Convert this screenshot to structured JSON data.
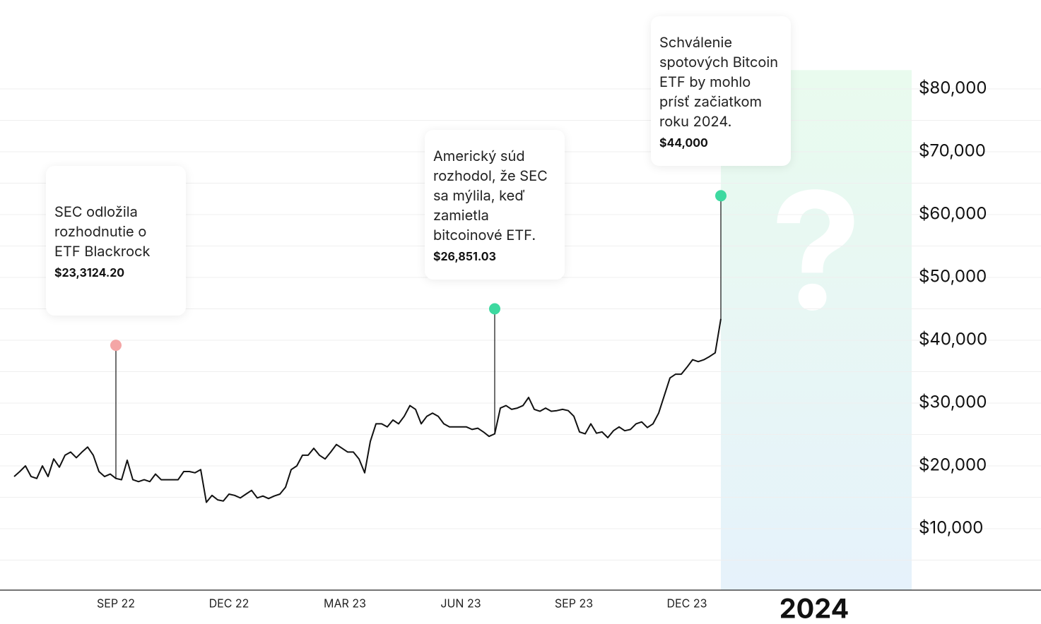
{
  "chart_data": {
    "type": "line",
    "series": [
      {
        "color": "#111111",
        "values": [
          18300,
          19100,
          20000,
          18300,
          18000,
          20000,
          18300,
          21100,
          19800,
          21700,
          22200,
          21300,
          22200,
          23000,
          21700,
          19100,
          18300,
          18700,
          18000,
          17800,
          20900,
          17800,
          17500,
          17800,
          17500,
          18700,
          17800,
          17800,
          17800,
          17800,
          19100,
          19100,
          18900,
          19400,
          14200,
          15300,
          14600,
          14400,
          15500,
          15300,
          14900,
          15500,
          16100,
          14900,
          15200,
          14800,
          15200,
          15500,
          16600,
          19400,
          20000,
          21700,
          21700,
          22800,
          21700,
          21100,
          22200,
          23400,
          22800,
          22200,
          22200,
          21100,
          18900,
          23900,
          26700,
          26700,
          26200,
          27300,
          26700,
          27900,
          29600,
          29000,
          26700,
          27900,
          28400,
          27900,
          26700,
          26200,
          26200,
          26200,
          26200,
          25800,
          26000,
          25400,
          24700,
          25100,
          29200,
          29600,
          29000,
          29200,
          29600,
          30900,
          29000,
          28700,
          29200,
          28700,
          28800,
          29000,
          28800,
          27900,
          25400,
          25100,
          26700,
          25200,
          25400,
          24500,
          25600,
          26200,
          25600,
          25800,
          26700,
          27000,
          26100,
          26700,
          28400,
          31200,
          34000,
          34600,
          34600,
          35700,
          36900,
          36600,
          36900,
          37400,
          38000,
          43400
        ]
      }
    ],
    "xlim": [
      -2.5,
      158.75
    ],
    "xticks": [
      {
        "value": 18,
        "label": "SEP 22"
      },
      {
        "value": 38,
        "label": "DEC 22"
      },
      {
        "value": 58.5,
        "label": "MAR 23"
      },
      {
        "value": 79,
        "label": "JUN 23"
      },
      {
        "value": 99,
        "label": "SEP 23"
      },
      {
        "value": 119,
        "label": "DEC 23"
      },
      {
        "value": 141.5,
        "label": "2024"
      }
    ],
    "ylim": [
      0,
      83000
    ],
    "yticks": [
      {
        "value": 10000,
        "label": "$10,000"
      },
      {
        "value": 20000,
        "label": "$20,000"
      },
      {
        "value": 30000,
        "label": "$30,000"
      },
      {
        "value": 40000,
        "label": "$40,000"
      },
      {
        "value": 50000,
        "label": "$50,000"
      },
      {
        "value": 60000,
        "label": "$60,000"
      },
      {
        "value": 70000,
        "label": "$70,000"
      },
      {
        "value": 80000,
        "label": "$80,000"
      }
    ],
    "grid_lines": [
      5000,
      10000,
      15000,
      20000,
      25000,
      30000,
      35000,
      40000,
      45000,
      50000,
      55000,
      60000,
      65000,
      70000,
      75000,
      80000
    ],
    "highlight_range": [
      125,
      158.75
    ],
    "highlight_text": "?",
    "annotations": [
      {
        "x": 18,
        "y": 39200,
        "color": "#f4a6a6",
        "text": [
          "SEC odložila",
          "rozhodnutie o",
          "ETF Blackrock"
        ],
        "label": "$23,3124.20"
      },
      {
        "x": 85,
        "y": 45000,
        "color": "#3dd9a0",
        "text": [
          "Americký súd",
          "rozhodol, že SEC",
          "sa mýlila, keď",
          "zamietla",
          "bitcoinové ETF."
        ],
        "label": "$26,851.03"
      },
      {
        "x": 125,
        "y": 63000,
        "color": "#3dd9a0",
        "text": [
          "Schválenie",
          "spotových Bitcoin",
          "ETF by mohlo",
          "prísť začiatkom",
          "roku 2024."
        ],
        "label": "$44,000"
      }
    ]
  }
}
